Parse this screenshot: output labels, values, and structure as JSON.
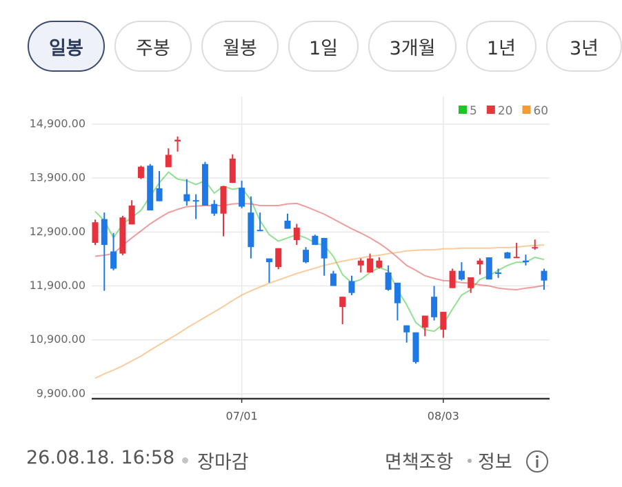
{
  "tabs": [
    "일봉",
    "주봉",
    "월봉",
    "1일",
    "3개월",
    "1년",
    "3년"
  ],
  "chart_data": {
    "type": "candlestick",
    "categories": [
      null,
      null,
      null,
      null,
      null,
      null,
      null,
      null,
      null,
      null,
      null,
      null,
      null,
      null,
      null,
      null,
      "07/01",
      null,
      null,
      null,
      null,
      null,
      null,
      null,
      null,
      null,
      null,
      null,
      null,
      null,
      null,
      null,
      null,
      null,
      null,
      null,
      null,
      null,
      "08/03",
      null,
      null,
      null,
      null,
      null,
      null,
      null,
      null,
      null,
      null,
      null
    ],
    "open": [
      12700,
      13140,
      12540,
      12500,
      13040,
      13900,
      14130,
      13710,
      14100,
      14580,
      13600,
      13490,
      14160,
      13420,
      13240,
      13810,
      13720,
      13260,
      12940,
      12410,
      12250,
      13110,
      12750,
      12570,
      12830,
      12790,
      12130,
      11510,
      11990,
      12280,
      12150,
      12240,
      12150,
      11960,
      11170,
      11040,
      11130,
      11700,
      11090,
      11860,
      12180,
      11860,
      12300,
      12430,
      12150,
      12520,
      12430,
      12370,
      12600,
      12180
    ],
    "high": [
      13130,
      13260,
      12880,
      13200,
      13490,
      14130,
      14160,
      14030,
      14450,
      14670,
      13880,
      13600,
      14200,
      13490,
      13750,
      14340,
      13850,
      13560,
      13260,
      12410,
      12600,
      13240,
      13050,
      12620,
      12850,
      12790,
      12180,
      11700,
      12090,
      12410,
      12500,
      12430,
      12280,
      11960,
      11170,
      11040,
      11350,
      11900,
      11420,
      12220,
      12340,
      12060,
      12410,
      12430,
      12220,
      12530,
      12700,
      12480,
      12760,
      12220
    ],
    "low": [
      12660,
      11810,
      12190,
      12470,
      13040,
      13880,
      13300,
      13470,
      14100,
      14390,
      13390,
      13140,
      13390,
      13200,
      12820,
      13810,
      13340,
      12410,
      12920,
      11960,
      12210,
      12960,
      12660,
      12320,
      12660,
      12090,
      11900,
      11190,
      11730,
      12150,
      12150,
      12220,
      11810,
      11260,
      10850,
      10460,
      10970,
      11260,
      10940,
      11860,
      12000,
      11770,
      12110,
      12020,
      12050,
      12410,
      12430,
      12280,
      12570,
      11830
    ],
    "close": [
      13080,
      12660,
      12220,
      13170,
      13390,
      14110,
      13300,
      13470,
      14330,
      14610,
      13470,
      13470,
      13390,
      13240,
      13750,
      14260,
      13370,
      12620,
      12920,
      12340,
      12600,
      12960,
      12980,
      12340,
      12660,
      12410,
      11900,
      11700,
      11770,
      12370,
      12410,
      12370,
      11830,
      11580,
      11040,
      10490,
      11350,
      11320,
      11420,
      12180,
      12020,
      12060,
      12370,
      12020,
      12130,
      12410,
      12440,
      12340,
      12620,
      12000
    ],
    "up_color": "#e5323c",
    "down_color": "#1e78e6",
    "series": [
      {
        "name": "5",
        "color": "#22c322",
        "values": [
          13280,
          13110,
          12790,
          13050,
          13170,
          13300,
          13560,
          13810,
          14010,
          13880,
          13850,
          13780,
          13850,
          13620,
          13750,
          13690,
          13720,
          13490,
          13110,
          12850,
          12730,
          12790,
          12850,
          12790,
          12700,
          12650,
          12450,
          12110,
          11960,
          12020,
          12150,
          12240,
          12180,
          11830,
          11550,
          11220,
          11090,
          11060,
          11190,
          11470,
          11730,
          11830,
          12020,
          12090,
          12190,
          12280,
          12340,
          12340,
          12430,
          12390
        ]
      },
      {
        "name": "20",
        "color": "#e03a3a",
        "values": [
          12450,
          12470,
          12500,
          12650,
          12790,
          12920,
          13050,
          13160,
          13260,
          13320,
          13370,
          13380,
          13390,
          13390,
          13390,
          13420,
          13430,
          13420,
          13390,
          13390,
          13390,
          13420,
          13430,
          13370,
          13300,
          13230,
          13140,
          13050,
          12960,
          12880,
          12790,
          12690,
          12570,
          12430,
          12280,
          12190,
          12090,
          12040,
          12000,
          11990,
          11960,
          11950,
          11920,
          11900,
          11860,
          11840,
          11830,
          11860,
          11880,
          11910
        ]
      },
      {
        "name": "60",
        "color": "#f59a3a",
        "values": [
          10190,
          10270,
          10340,
          10420,
          10510,
          10600,
          10710,
          10810,
          10910,
          11010,
          11120,
          11220,
          11320,
          11420,
          11520,
          11630,
          11730,
          11810,
          11880,
          11950,
          12010,
          12070,
          12130,
          12180,
          12230,
          12280,
          12320,
          12360,
          12390,
          12420,
          12450,
          12470,
          12500,
          12520,
          12550,
          12560,
          12570,
          12570,
          12590,
          12590,
          12600,
          12600,
          12600,
          12600,
          12610,
          12610,
          12620,
          12640,
          12650,
          12660
        ]
      }
    ],
    "ylim": [
      9810,
      15410
    ],
    "yticks": [
      {
        "value": 9900,
        "label": "9,900.00"
      },
      {
        "value": 10900,
        "label": "10,900.00"
      },
      {
        "value": 11900,
        "label": "11,900.00"
      },
      {
        "value": 12900,
        "label": "12,900.00"
      },
      {
        "value": 13900,
        "label": "13,900.00"
      },
      {
        "value": 14900,
        "label": "14,900.00"
      }
    ],
    "grid": true
  },
  "footer": {
    "timestamp": "26.08.18. 16:58",
    "status": "장마감",
    "disclaimer": "면책조항",
    "info": "정보"
  }
}
